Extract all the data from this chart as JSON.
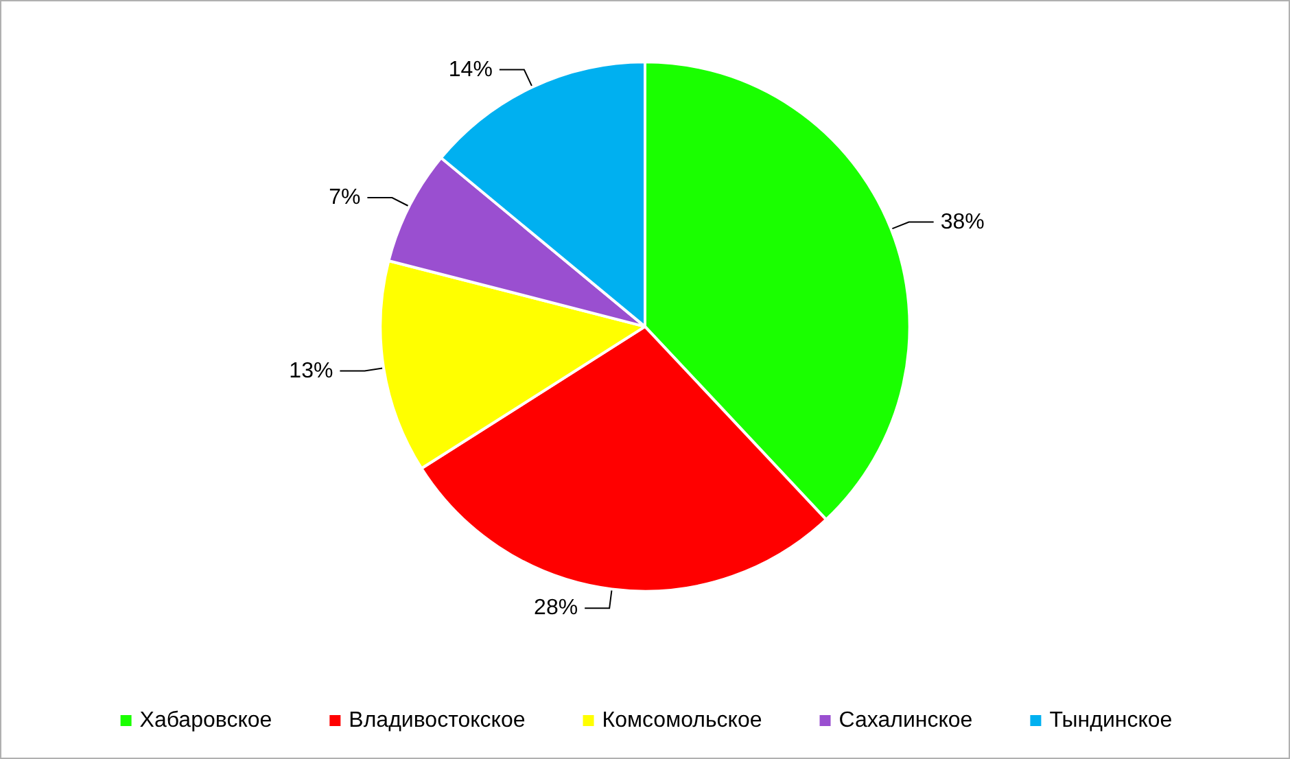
{
  "chart_data": {
    "type": "pie",
    "categories": [
      "Хабаровское",
      "Владивостокское",
      "Комсомольское",
      "Сахалинское",
      "Тындинское"
    ],
    "values": [
      38,
      28,
      13,
      7,
      14
    ],
    "value_labels": [
      "38%",
      "28%",
      "13%",
      "7%",
      "14%"
    ],
    "colors": [
      "#1aff00",
      "#ff0000",
      "#ffff00",
      "#9a4fd0",
      "#00b0f0"
    ],
    "legend": "bottom"
  }
}
